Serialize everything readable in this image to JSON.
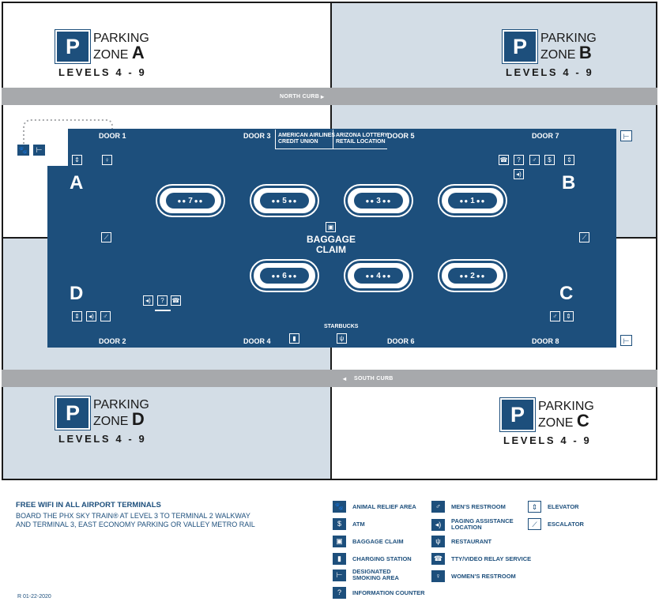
{
  "curbs": {
    "north": "NORTH CURB",
    "south": "SOUTH CURB"
  },
  "parking": {
    "word_parking": "PARKING",
    "word_zone": "ZONE",
    "p_symbol": "P",
    "zone_a": "A",
    "zone_b": "B",
    "zone_c": "C",
    "zone_d": "D",
    "levels": "LEVELS 4 - 9"
  },
  "doors": {
    "d1": "DOOR 1",
    "d2": "DOOR 2",
    "d3": "DOOR 3",
    "d4": "DOOR 4",
    "d5": "DOOR 5",
    "d6": "DOOR 6",
    "d7": "DOOR 7",
    "d8": "DOOR 8"
  },
  "areas": {
    "a": "A",
    "b": "B",
    "c": "C",
    "d": "D"
  },
  "carousels": {
    "c1": "1",
    "c2": "2",
    "c3": "3",
    "c4": "4",
    "c5": "5",
    "c6": "6",
    "c7": "7"
  },
  "callouts": {
    "american_line1": "AMERICAN AIRLINES",
    "american_line2": "CREDIT UNION",
    "lottery_line1": "ARIZONA LOTTERY",
    "lottery_line2": "RETAIL LOCATION",
    "starbucks": "STARBUCKS"
  },
  "baggage_claim": {
    "line1": "BAGGAGE",
    "line2": "CLAIM"
  },
  "footer": {
    "wifi_title": "FREE WIFI IN ALL AIRPORT TERMINALS",
    "info_line1": "BOARD THE PHX SKY TRAIN® AT LEVEL 3 TO TERMINAL 2 WALKWAY",
    "info_line2": "AND TERMINAL 3, EAST ECONOMY PARKING OR VALLEY METRO RAIL",
    "revision": "R 01-22-2020"
  },
  "legend": {
    "animal_relief": "ANIMAL RELIEF AREA",
    "atm": "ATM",
    "baggage_claim": "BAGGAGE CLAIM",
    "charging": "CHARGING STATION",
    "smoking_1": "DESIGNATED",
    "smoking_2": "SMOKING AREA",
    "info_counter": "INFORMATION COUNTER",
    "mens": "MEN'S RESTROOM",
    "paging_1": "PAGING ASSISTANCE",
    "paging_2": "LOCATION",
    "restaurant": "RESTAURANT",
    "tty": "TTY/VIDEO RELAY SERVICE",
    "womens": "WOMEN'S RESTROOM",
    "elevator": "ELEVATOR",
    "escalator": "ESCALATOR"
  },
  "icons": {
    "animal": "animal-relief-icon",
    "atm": "atm-icon",
    "baggage": "baggage-claim-icon",
    "charging": "charging-station-icon",
    "smoking": "smoking-area-icon",
    "info": "information-counter-icon",
    "mens": "mens-restroom-icon",
    "paging": "paging-assistance-icon",
    "restaurant": "restaurant-icon",
    "tty": "tty-icon",
    "womens": "womens-restroom-icon",
    "elevator": "elevator-icon",
    "escalator": "escalator-icon"
  },
  "colors": {
    "terminal_blue": "#1d4f7c",
    "parking_light": "#d3dde6",
    "curb_gray": "#a7a9ac"
  }
}
